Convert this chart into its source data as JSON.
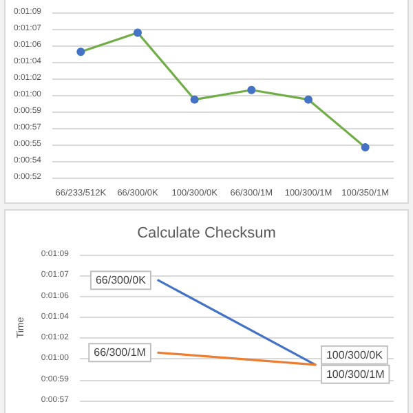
{
  "chart_data": [
    {
      "type": "line",
      "categories": [
        "66/233/512K",
        "66/300/0K",
        "100/300/0K",
        "66/300/1M",
        "100/300/1M",
        "100/350/1M"
      ],
      "series": [
        {
          "color": "#70ad47",
          "colors": [
            "#4472c4",
            "#4472c4",
            "#4472c4",
            "#4472c4",
            "#4472c4",
            "#4472c4"
          ],
          "values": [
            65.0,
            67.0,
            60.0,
            61.0,
            60.0,
            55.0
          ]
        }
      ],
      "ylim": [
        51.84,
        69.12
      ],
      "yticks": [
        {
          "value": 51.84,
          "label": "0:00:52"
        },
        {
          "value": 53.568,
          "label": "0:00:54"
        },
        {
          "value": 55.296,
          "label": "0:00:55"
        },
        {
          "value": 57.024,
          "label": "0:00:57"
        },
        {
          "value": 58.752,
          "label": "0:00:59"
        },
        {
          "value": 60.48,
          "label": "0:01:00"
        },
        {
          "value": 62.208,
          "label": "0:01:02"
        },
        {
          "value": 63.936,
          "label": "0:01:04"
        },
        {
          "value": 65.664,
          "label": "0:01:06"
        },
        {
          "value": 67.392,
          "label": "0:01:07"
        },
        {
          "value": 69.12,
          "label": "0:01:09"
        }
      ],
      "grid": "y",
      "marker": "circle"
    },
    {
      "type": "line",
      "title": "Calculate Checksum",
      "ylabel": "Time",
      "categories": [
        null,
        null
      ],
      "series": [
        {
          "color": "#4472c4",
          "values": [
            67.0,
            60.0
          ],
          "value_labels": [
            "66/300/0K",
            "100/300/0K"
          ]
        },
        {
          "color": "#ed7d31",
          "values": [
            61.0,
            60.0
          ],
          "value_labels": [
            "66/300/1M",
            "100/300/1M"
          ]
        }
      ],
      "ylim": [
        57.024,
        69.12
      ],
      "yticks": [
        {
          "value": 57.024,
          "label": "0:00:57"
        },
        {
          "value": 58.752,
          "label": "0:00:59"
        },
        {
          "value": 60.48,
          "label": "0:01:00"
        },
        {
          "value": 62.208,
          "label": "0:01:02"
        },
        {
          "value": 63.936,
          "label": "0:01:04"
        },
        {
          "value": 65.664,
          "label": "0:01:06"
        },
        {
          "value": 67.392,
          "label": "0:01:07"
        },
        {
          "value": 69.12,
          "label": "0:01:09"
        }
      ],
      "grid": "y",
      "marker": "none"
    }
  ]
}
